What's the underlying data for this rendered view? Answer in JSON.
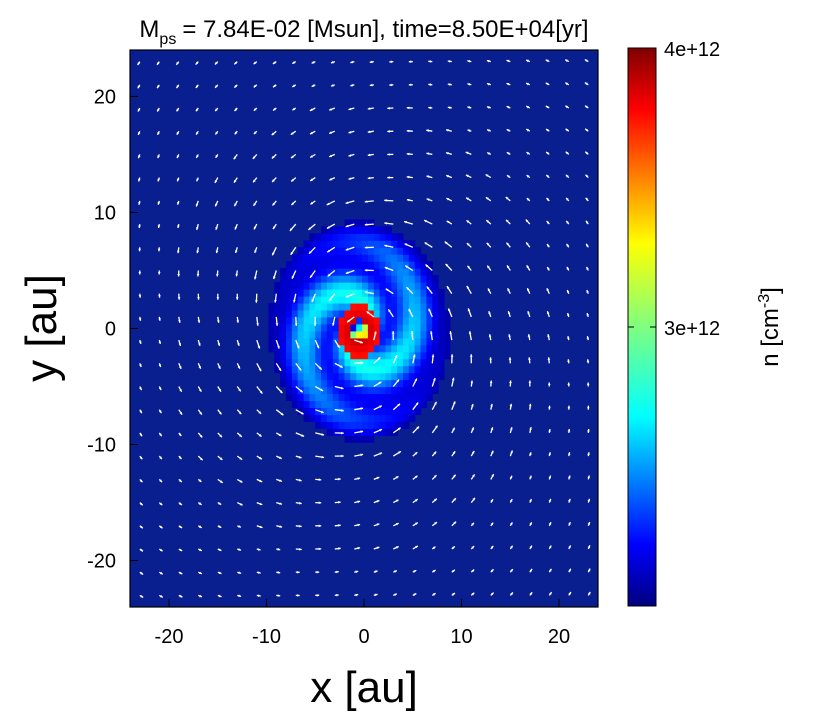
{
  "chart_data": {
    "type": "heatmap",
    "title": {
      "mass_symbol": "M",
      "mass_subscript": "ps",
      "mass_value": "= 7.84E-02 [Msun], time=8.50E+04[yr]"
    },
    "xlabel": "x [au]",
    "ylabel": "y [au]",
    "xlim": [
      -24,
      24
    ],
    "ylim": [
      -24,
      24
    ],
    "xticks": [
      -20,
      -10,
      0,
      10,
      20
    ],
    "yticks": [
      -20,
      -10,
      0,
      10,
      20
    ],
    "xtick_labels": [
      "-20",
      "-10",
      "0",
      "10",
      "20"
    ],
    "ytick_labels": [
      "-20",
      "-10",
      "0",
      "10",
      "20"
    ],
    "colorbar": {
      "label_main": "n  [cm",
      "label_exp": "-3",
      "label_close": "]",
      "min": 2000000000000.0,
      "max": 4000000000000.0,
      "ticks": [
        3000000000000.0,
        4000000000000.0
      ],
      "tick_labels": [
        "3e+12",
        "4e+12"
      ],
      "colormap": "jet"
    },
    "density_structure": {
      "background_fraction": 0.03,
      "core_center": [
        -0.5,
        -0.2
      ],
      "core_radius_au": 2.2,
      "core_fraction": 0.97,
      "spiral_arms": 2,
      "disk_radius_au": 9.5,
      "disk_fraction": 0.38
    },
    "velocity_field": {
      "rotation": "counterclockwise",
      "grid_step_au": 2.0,
      "arrow_color": "#ffffff"
    },
    "colors": {
      "background": "#0a1f8f",
      "arrows": "#ffffff"
    }
  }
}
